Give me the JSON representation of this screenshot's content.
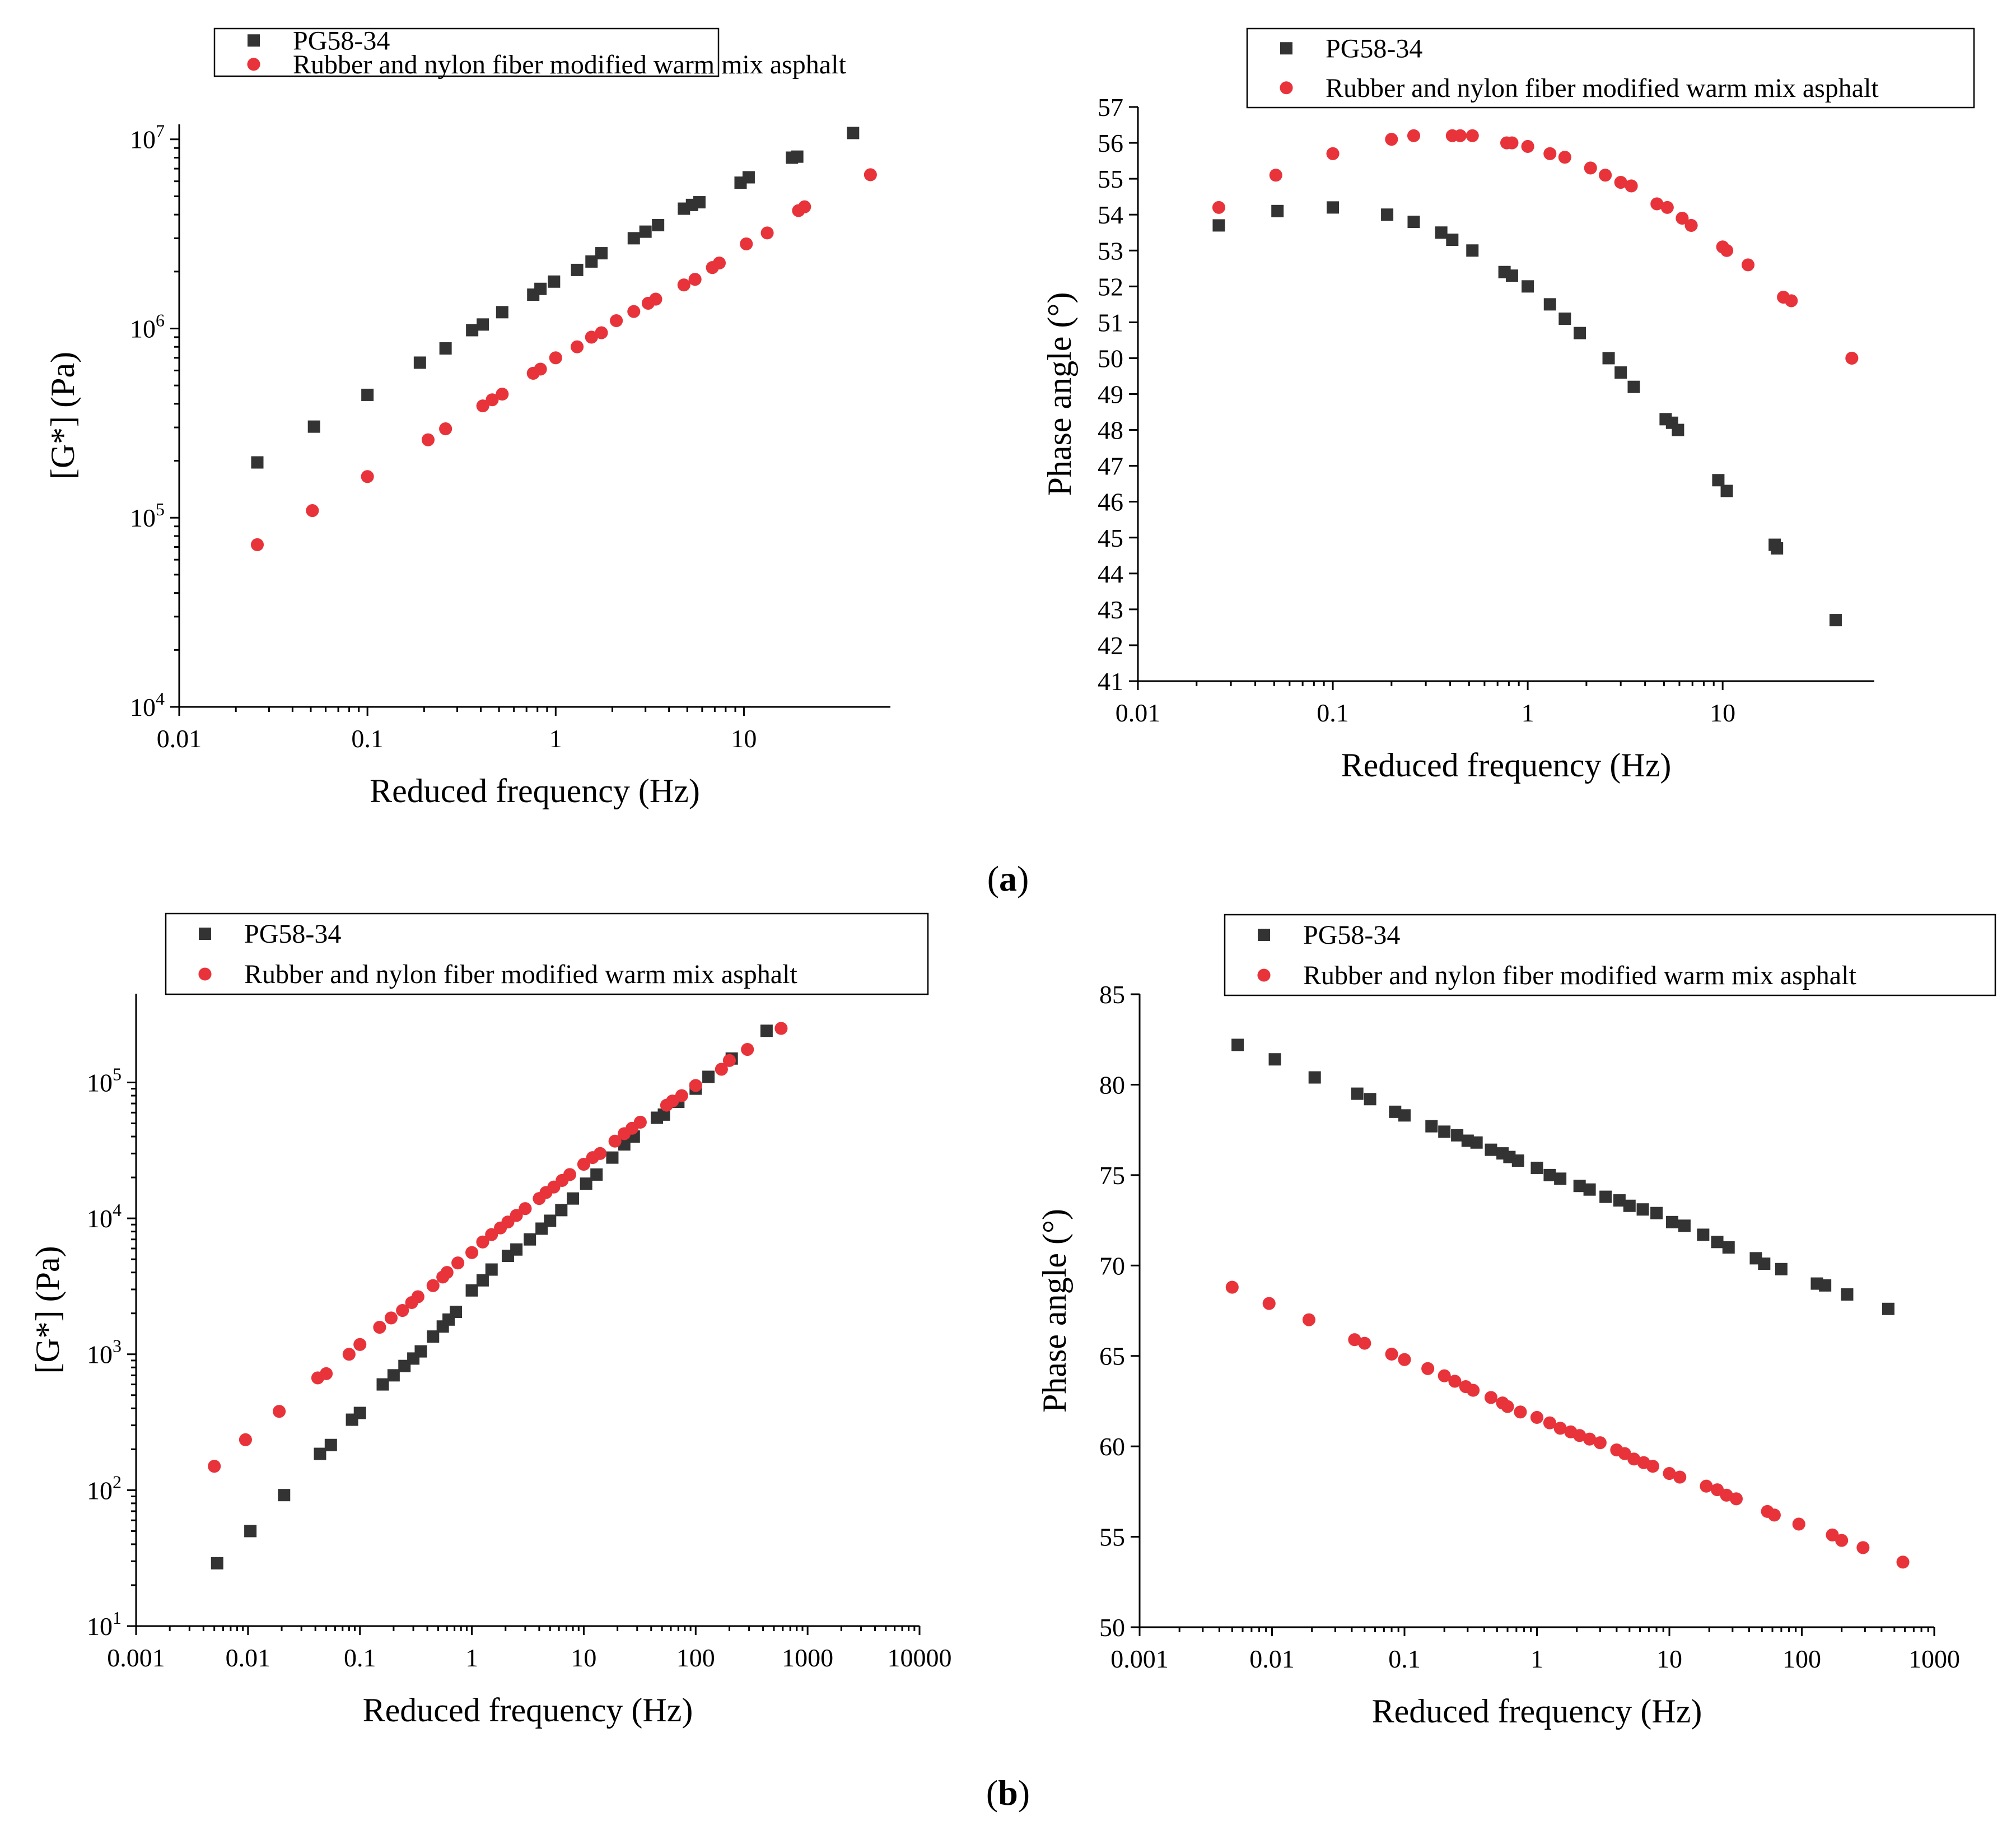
{
  "captions": {
    "a": {
      "open": "(",
      "letter": "a",
      "close": ")"
    },
    "b": {
      "open": "(",
      "letter": "b",
      "close": ")"
    }
  },
  "colors": {
    "series1": "#333333",
    "series2": "#e8333a"
  },
  "chart_data": [
    {
      "id": "a-modulus",
      "type": "scatter",
      "xscale": "log",
      "yscale": "log",
      "xlabel": "Reduced frequency (Hz)",
      "ylabel": "[G*]   (Pa)",
      "xlim": [
        0.01,
        60
      ],
      "ylim": [
        10000,
        12000000
      ],
      "xticks": [
        0.01,
        0.1,
        1,
        10
      ],
      "xtick_labels": [
        "0.01",
        "0.1",
        "1",
        "10"
      ],
      "yticks": [
        10000,
        100000,
        1000000,
        10000000
      ],
      "ytick_labels": [
        {
          "base": "10",
          "exp": "4"
        },
        {
          "base": "10",
          "exp": "5"
        },
        {
          "base": "10",
          "exp": "6"
        },
        {
          "base": "10",
          "exp": "7"
        }
      ],
      "legend_position": "top",
      "series": [
        {
          "name": "PG58-34",
          "marker": "square",
          "color": "#333333",
          "x": [
            0.026,
            0.052,
            0.1,
            0.19,
            0.26,
            0.36,
            0.41,
            0.52,
            0.76,
            0.83,
            0.98,
            1.3,
            1.55,
            1.75,
            2.6,
            3.0,
            3.5,
            4.8,
            5.3,
            5.8,
            9.6,
            10.6,
            18.0,
            19.2,
            38.0
          ],
          "y": [
            196000,
            303000,
            446000,
            660000,
            785000,
            980000,
            1050000,
            1220000,
            1510000,
            1620000,
            1770000,
            2040000,
            2260000,
            2500000,
            3000000,
            3250000,
            3520000,
            4300000,
            4500000,
            4650000,
            5900000,
            6300000,
            8000000,
            8100000,
            10800000
          ]
        },
        {
          "name": "Rubber and nylon fiber modified warm mix asphalt",
          "marker": "circle",
          "color": "#e8333a",
          "x": [
            0.026,
            0.051,
            0.1,
            0.21,
            0.26,
            0.41,
            0.46,
            0.52,
            0.76,
            0.83,
            1.0,
            1.3,
            1.55,
            1.75,
            2.1,
            2.6,
            3.1,
            3.4,
            4.8,
            5.5,
            6.8,
            7.4,
            10.3,
            13.3,
            19.5,
            21.0,
            47.0
          ],
          "y": [
            72000,
            109000,
            165000,
            258000,
            295000,
            390000,
            420000,
            450000,
            580000,
            610000,
            700000,
            800000,
            900000,
            950000,
            1100000,
            1230000,
            1360000,
            1430000,
            1700000,
            1820000,
            2100000,
            2220000,
            2800000,
            3200000,
            4200000,
            4400000,
            6500000
          ]
        }
      ]
    },
    {
      "id": "a-phase",
      "type": "scatter",
      "xscale": "log",
      "yscale": "linear",
      "xlabel": "Reduced frequency (Hz)",
      "ylabel": "Phase angle   (°)",
      "xlim": [
        0.01,
        60
      ],
      "ylim": [
        41,
        57
      ],
      "xticks": [
        0.01,
        0.1,
        1,
        10
      ],
      "xtick_labels": [
        "0.01",
        "0.1",
        "1",
        "10"
      ],
      "yticks": [
        41,
        42,
        43,
        44,
        45,
        46,
        47,
        48,
        49,
        50,
        51,
        52,
        53,
        54,
        55,
        56,
        57
      ],
      "ytick_labels": [
        "41",
        "42",
        "43",
        "44",
        "45",
        "46",
        "47",
        "48",
        "49",
        "50",
        "51",
        "52",
        "53",
        "54",
        "55",
        "56",
        "57"
      ],
      "legend_position": "top",
      "series": [
        {
          "name": "PG58-34",
          "marker": "square",
          "color": "#333333",
          "x": [
            0.026,
            0.052,
            0.1,
            0.19,
            0.26,
            0.36,
            0.41,
            0.52,
            0.76,
            0.83,
            1.0,
            1.3,
            1.55,
            1.85,
            2.6,
            3.0,
            3.5,
            5.1,
            5.5,
            5.9,
            9.5,
            10.5,
            18.5,
            19.0,
            38.0
          ],
          "y": [
            53.7,
            54.1,
            54.2,
            54.0,
            53.8,
            53.5,
            53.3,
            53.0,
            52.4,
            52.3,
            52.0,
            51.5,
            51.1,
            50.7,
            50.0,
            49.6,
            49.2,
            48.3,
            48.2,
            48.0,
            46.6,
            46.3,
            44.8,
            44.7,
            42.7
          ]
        },
        {
          "name": "Rubber and nylon fiber modified warm mix asphalt",
          "marker": "circle",
          "color": "#e8333a",
          "x": [
            0.026,
            0.051,
            0.1,
            0.2,
            0.26,
            0.41,
            0.45,
            0.52,
            0.78,
            0.83,
            1.0,
            1.3,
            1.55,
            2.1,
            2.5,
            3.0,
            3.4,
            4.6,
            5.2,
            6.2,
            6.9,
            10.0,
            10.5,
            13.5,
            20.5,
            22.5,
            46.0
          ],
          "y": [
            54.2,
            55.1,
            55.7,
            56.1,
            56.2,
            56.2,
            56.2,
            56.2,
            56.0,
            56.0,
            55.9,
            55.7,
            55.6,
            55.3,
            55.1,
            54.9,
            54.8,
            54.3,
            54.2,
            53.9,
            53.7,
            53.1,
            53.0,
            52.6,
            51.7,
            51.6,
            50.0
          ]
        }
      ]
    },
    {
      "id": "b-modulus",
      "type": "scatter",
      "xscale": "log",
      "yscale": "log",
      "xlabel": "Reduced frequency (Hz)",
      "ylabel": "[G*]   (Pa)",
      "xlim": [
        0.001,
        10000
      ],
      "ylim": [
        10,
        450000
      ],
      "xticks": [
        0.001,
        0.01,
        0.1,
        1,
        10,
        100,
        1000,
        10000
      ],
      "xtick_labels": [
        "0.001",
        "0.01",
        "0.1",
        "1",
        "10",
        "100",
        "1000",
        "10000"
      ],
      "yticks": [
        10,
        100,
        1000,
        10000,
        100000
      ],
      "ytick_labels": [
        {
          "base": "10",
          "exp": "1"
        },
        {
          "base": "10",
          "exp": "2"
        },
        {
          "base": "10",
          "exp": "3"
        },
        {
          "base": "10",
          "exp": "4"
        },
        {
          "base": "10",
          "exp": "5"
        }
      ],
      "legend_position": "top",
      "series": [
        {
          "name": "PG58-34",
          "marker": "square",
          "color": "#333333",
          "x": [
            0.0053,
            0.0105,
            0.021,
            0.044,
            0.055,
            0.085,
            0.1,
            0.16,
            0.2,
            0.25,
            0.3,
            0.35,
            0.45,
            0.55,
            0.62,
            0.72,
            1.0,
            1.25,
            1.5,
            2.1,
            2.5,
            3.3,
            4.2,
            5.0,
            6.3,
            8.0,
            10.5,
            13.0,
            18.0,
            23.0,
            28.0,
            45.0,
            52.0,
            70.0,
            100.0,
            130.0,
            210.0,
            430.0
          ],
          "y": [
            29,
            50,
            92,
            185,
            215,
            330,
            370,
            600,
            700,
            820,
            930,
            1050,
            1350,
            1600,
            1800,
            2050,
            2950,
            3500,
            4200,
            5300,
            5900,
            7000,
            8400,
            9600,
            11500,
            14000,
            18000,
            21000,
            28000,
            35000,
            40000,
            55000,
            58000,
            72000,
            90000,
            110000,
            150000,
            240000
          ]
        },
        {
          "name": "Rubber and nylon fiber modified warm mix asphalt",
          "marker": "circle",
          "color": "#e8333a",
          "x": [
            0.005,
            0.0095,
            0.019,
            0.042,
            0.05,
            0.08,
            0.1,
            0.15,
            0.19,
            0.24,
            0.29,
            0.33,
            0.45,
            0.55,
            0.6,
            0.75,
            1.0,
            1.25,
            1.5,
            1.8,
            2.1,
            2.5,
            3.0,
            4.0,
            4.6,
            5.4,
            6.4,
            7.5,
            10.0,
            12.0,
            14.0,
            19.0,
            23.0,
            27.0,
            32.0,
            55.0,
            62.0,
            75.0,
            100.0,
            170.0,
            200.0,
            290.0,
            580.0
          ],
          "y": [
            150,
            235,
            380,
            670,
            720,
            1000,
            1180,
            1580,
            1850,
            2100,
            2400,
            2650,
            3200,
            3700,
            4000,
            4700,
            5600,
            6700,
            7600,
            8500,
            9400,
            10500,
            11800,
            14000,
            15500,
            17000,
            19000,
            21000,
            25000,
            28000,
            30000,
            37000,
            42000,
            46000,
            51000,
            68000,
            73000,
            80000,
            95000,
            125000,
            145000,
            175000,
            250000
          ]
        }
      ]
    },
    {
      "id": "b-phase",
      "type": "scatter",
      "xscale": "log",
      "yscale": "linear",
      "xlabel": "Reduced frequency (Hz)",
      "ylabel": "Phase angle   (°)",
      "xlim": [
        0.001,
        1000
      ],
      "ylim": [
        50,
        85
      ],
      "xticks": [
        0.001,
        0.01,
        0.1,
        1,
        10,
        100,
        1000
      ],
      "xtick_labels": [
        "0.001",
        "0.01",
        "0.1",
        "1",
        "10",
        "100",
        "1000"
      ],
      "yticks": [
        50,
        55,
        60,
        65,
        70,
        75,
        80,
        85
      ],
      "ytick_labels": [
        "50",
        "55",
        "60",
        "65",
        "70",
        "75",
        "80",
        "85"
      ],
      "legend_position": "top",
      "series": [
        {
          "name": "PG58-34",
          "marker": "square",
          "color": "#333333",
          "x": [
            0.0055,
            0.0105,
            0.021,
            0.044,
            0.055,
            0.085,
            0.1,
            0.16,
            0.2,
            0.25,
            0.3,
            0.35,
            0.45,
            0.55,
            0.62,
            0.72,
            1.0,
            1.25,
            1.5,
            2.1,
            2.5,
            3.3,
            4.2,
            5.0,
            6.3,
            8.0,
            10.5,
            13.0,
            18.0,
            23.0,
            28.0,
            45.0,
            52.0,
            70.0,
            130.0,
            150.0,
            220.0,
            450.0
          ],
          "y": [
            82.2,
            81.4,
            80.4,
            79.5,
            79.2,
            78.5,
            78.3,
            77.7,
            77.4,
            77.2,
            76.9,
            76.8,
            76.4,
            76.2,
            76.0,
            75.8,
            75.4,
            75.0,
            74.8,
            74.4,
            74.2,
            73.8,
            73.6,
            73.3,
            73.1,
            72.9,
            72.4,
            72.2,
            71.7,
            71.3,
            71.0,
            70.4,
            70.1,
            69.8,
            69.0,
            68.9,
            68.4,
            67.6
          ]
        },
        {
          "name": "Rubber and nylon fiber modified warm mix asphalt",
          "marker": "circle",
          "color": "#e8333a",
          "x": [
            0.005,
            0.0095,
            0.019,
            0.042,
            0.05,
            0.08,
            0.1,
            0.15,
            0.2,
            0.24,
            0.29,
            0.33,
            0.45,
            0.55,
            0.6,
            0.75,
            1.0,
            1.25,
            1.5,
            1.8,
            2.1,
            2.5,
            3.0,
            4.0,
            4.6,
            5.4,
            6.4,
            7.5,
            10.0,
            12.0,
            19.0,
            23.0,
            27.0,
            32.0,
            55.0,
            62.0,
            95.0,
            170.0,
            200.0,
            290.0,
            580.0
          ],
          "y": [
            68.8,
            67.9,
            67.0,
            65.9,
            65.7,
            65.1,
            64.8,
            64.3,
            63.9,
            63.6,
            63.3,
            63.1,
            62.7,
            62.4,
            62.2,
            61.9,
            61.6,
            61.3,
            61.0,
            60.8,
            60.6,
            60.4,
            60.2,
            59.8,
            59.6,
            59.3,
            59.1,
            58.9,
            58.5,
            58.3,
            57.8,
            57.6,
            57.3,
            57.1,
            56.4,
            56.2,
            55.7,
            55.1,
            54.8,
            54.4,
            53.6
          ]
        }
      ]
    }
  ]
}
